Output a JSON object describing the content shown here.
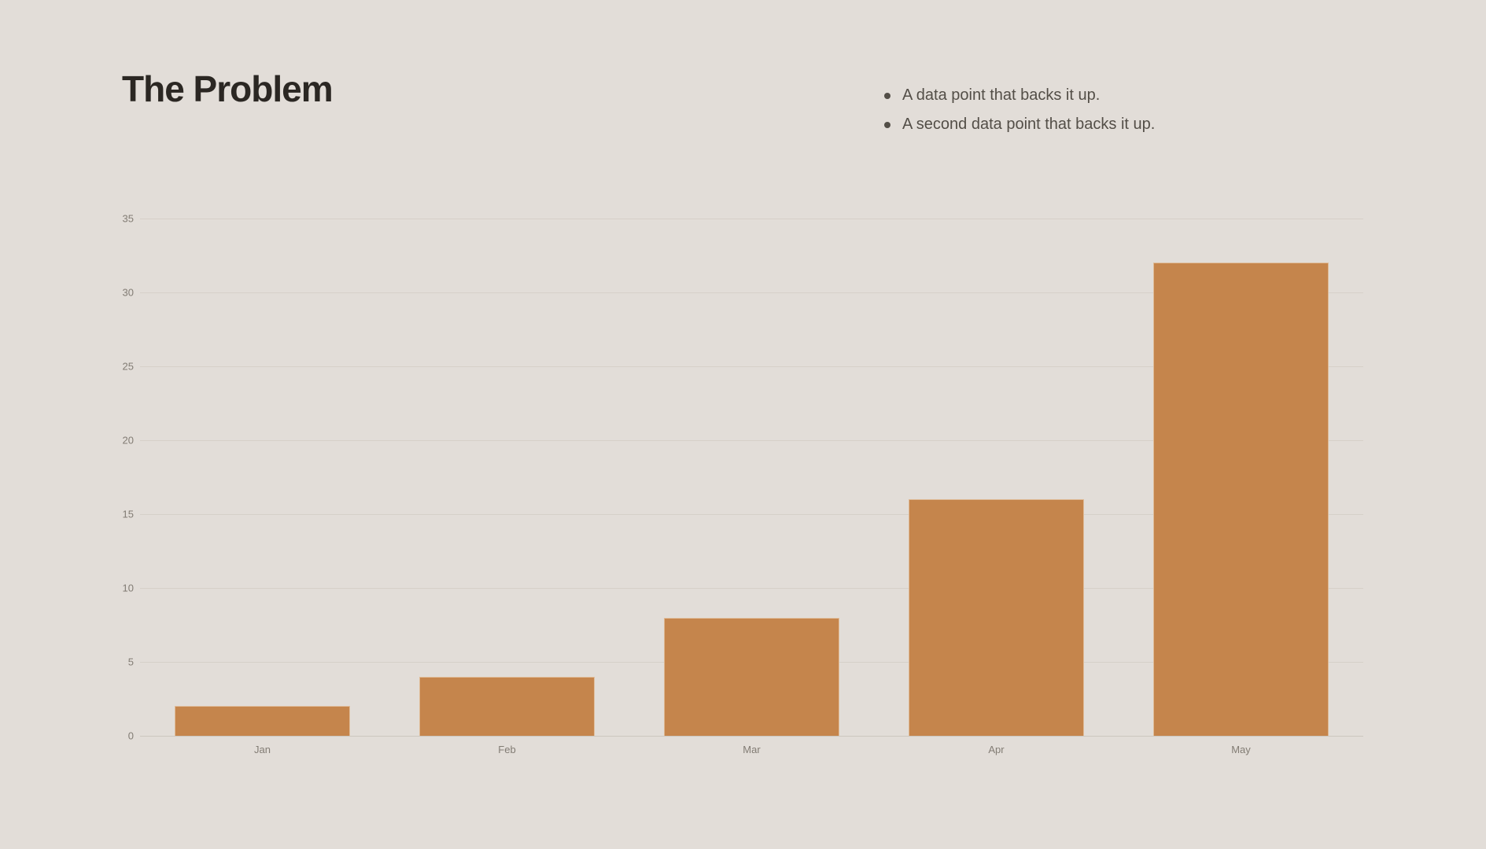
{
  "slide": {
    "title": "The Problem",
    "bullets": [
      "A data point that backs it up.",
      "A second data point that backs it up."
    ]
  },
  "colors": {
    "background": "#e2ddd8",
    "title": "#2b2723",
    "bullet_text": "#534e47",
    "bar": "#c5854c",
    "gridline": "#d6d0c9",
    "baseline": "#ccc6bf",
    "axis_label": "#827c74"
  },
  "chart_data": {
    "type": "bar",
    "categories": [
      "Jan",
      "Feb",
      "Mar",
      "Apr",
      "May"
    ],
    "values": [
      2,
      4,
      8,
      16,
      32
    ],
    "title": "",
    "xlabel": "",
    "ylabel": "",
    "ylim": [
      0,
      35
    ],
    "yticks": [
      0,
      5,
      10,
      15,
      20,
      25,
      30,
      35
    ],
    "grid": true,
    "legend": false,
    "bar_to_slot_ratio": 0.72
  }
}
